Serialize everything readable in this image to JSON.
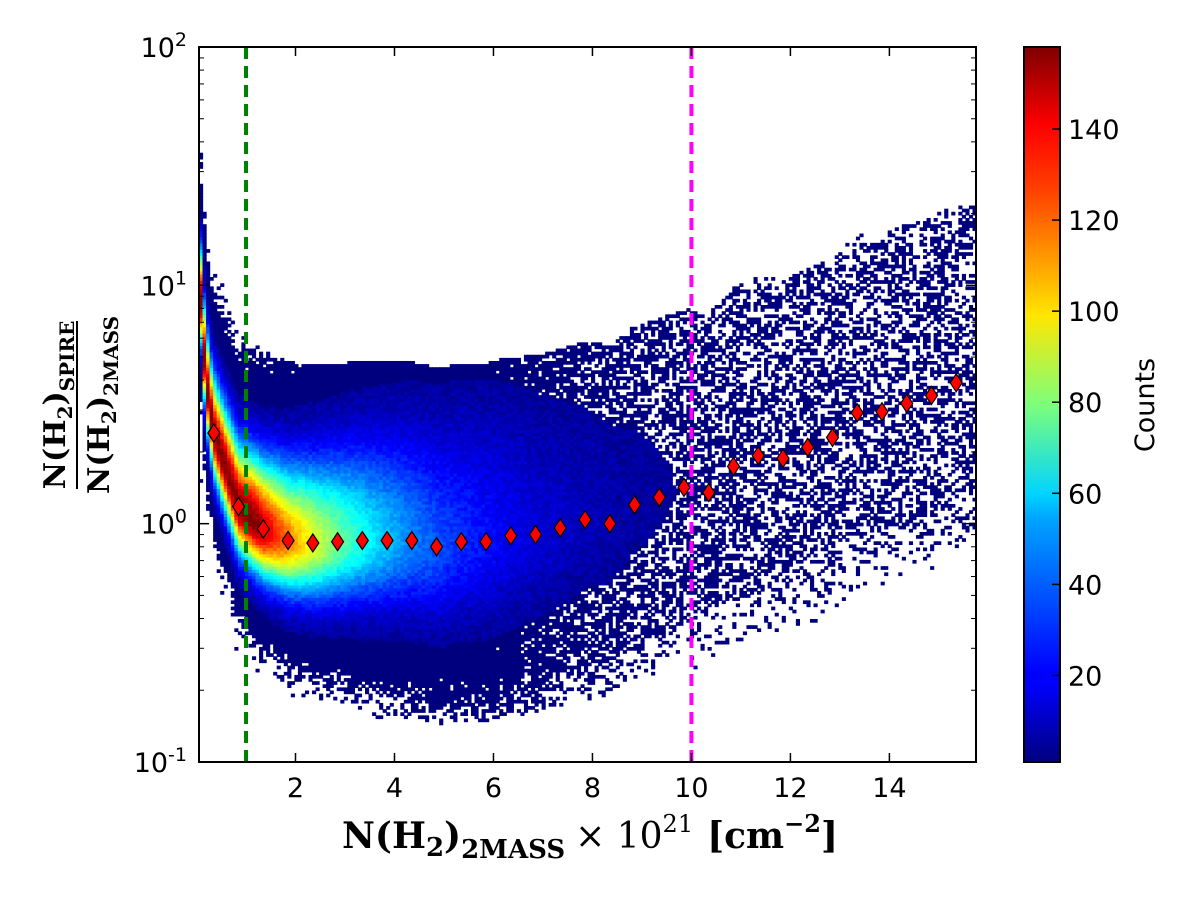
{
  "chart_data": {
    "type": "scatter",
    "subtype": "2d-density-histogram-with-binned-medians",
    "xlabel": {
      "prefix": "N(H",
      "sub1": "2",
      "mid": ")",
      "sub2": "2MASS",
      "times": "× 10",
      "exp": "21",
      "units_open": "[cm",
      "units_exp": "−2",
      "units_close": "]"
    },
    "ylabel": {
      "num_prefix": "N(H",
      "num_sub1": "2",
      "num_mid": ")",
      "num_sub2": "SPIRE",
      "den_prefix": "N(H",
      "den_sub1": "2",
      "den_mid": ")",
      "den_sub2": "2MASS"
    },
    "xlim": [
      0.05,
      15.75
    ],
    "ylim": [
      0.1,
      100
    ],
    "yscale": "log",
    "x_ticks": [
      {
        "value": 2,
        "label": "2"
      },
      {
        "value": 4,
        "label": "4"
      },
      {
        "value": 6,
        "label": "6"
      },
      {
        "value": 8,
        "label": "8"
      },
      {
        "value": 10,
        "label": "10"
      },
      {
        "value": 12,
        "label": "12"
      },
      {
        "value": 14,
        "label": "14"
      }
    ],
    "y_ticks": [
      {
        "value": 0.1,
        "base": "10",
        "exp": "-1"
      },
      {
        "value": 1,
        "base": "10",
        "exp": "0"
      },
      {
        "value": 10,
        "base": "10",
        "exp": "1"
      },
      {
        "value": 100,
        "base": "10",
        "exp": "2"
      }
    ],
    "vlines": [
      {
        "x": 1.0,
        "color": "#008000",
        "style": "dashed"
      },
      {
        "x": 10.0,
        "color": "#ff00ff",
        "style": "dashed"
      }
    ],
    "binned_medians": {
      "marker": "diamond",
      "color": "#ff0000",
      "x": [
        0.35,
        0.85,
        1.35,
        1.85,
        2.35,
        2.85,
        3.35,
        3.85,
        4.35,
        4.85,
        5.35,
        5.85,
        6.35,
        6.85,
        7.35,
        7.85,
        8.35,
        8.85,
        9.35,
        9.85,
        10.35,
        10.85,
        11.35,
        11.85,
        12.35,
        12.85,
        13.35,
        13.85,
        14.35,
        14.85,
        15.35
      ],
      "y": [
        2.4,
        1.18,
        0.95,
        0.85,
        0.83,
        0.84,
        0.85,
        0.85,
        0.85,
        0.8,
        0.84,
        0.84,
        0.89,
        0.9,
        0.96,
        1.04,
        1.0,
        1.2,
        1.29,
        1.42,
        1.35,
        1.74,
        1.93,
        1.88,
        2.09,
        2.3,
        2.92,
        2.95,
        3.2,
        3.45,
        3.9
      ]
    },
    "colorbar": {
      "label": "Counts",
      "range": [
        1,
        158
      ],
      "ticks": [
        20,
        40,
        60,
        80,
        100,
        120,
        140
      ],
      "colormap": "jet"
    }
  }
}
